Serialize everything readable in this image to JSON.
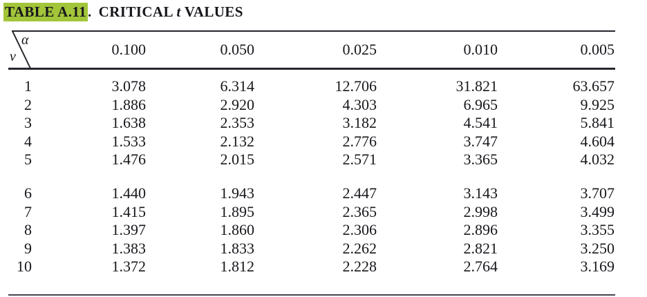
{
  "title": {
    "label": "TABLE A.11",
    "separator": ".",
    "heading_pre": "CRITICAL",
    "heading_t": "t",
    "heading_post": "VALUES",
    "highlight_color": "#a3c53a"
  },
  "table": {
    "corner": {
      "alpha": "α",
      "nu": "ν"
    },
    "columns": [
      "0.100",
      "0.050",
      "0.025",
      "0.010",
      "0.005"
    ],
    "row_groups": [
      [
        {
          "v": "1",
          "t": [
            "3.078",
            "6.314",
            "12.706",
            "31.821",
            "63.657"
          ]
        },
        {
          "v": "2",
          "t": [
            "1.886",
            "2.920",
            "4.303",
            "6.965",
            "9.925"
          ]
        },
        {
          "v": "3",
          "t": [
            "1.638",
            "2.353",
            "3.182",
            "4.541",
            "5.841"
          ]
        },
        {
          "v": "4",
          "t": [
            "1.533",
            "2.132",
            "2.776",
            "3.747",
            "4.604"
          ]
        },
        {
          "v": "5",
          "t": [
            "1.476",
            "2.015",
            "2.571",
            "3.365",
            "4.032"
          ]
        }
      ],
      [
        {
          "v": "6",
          "t": [
            "1.440",
            "1.943",
            "2.447",
            "3.143",
            "3.707"
          ]
        },
        {
          "v": "7",
          "t": [
            "1.415",
            "1.895",
            "2.365",
            "2.998",
            "3.499"
          ]
        },
        {
          "v": "8",
          "t": [
            "1.397",
            "1.860",
            "2.306",
            "2.896",
            "3.355"
          ]
        },
        {
          "v": "9",
          "t": [
            "1.383",
            "1.833",
            "2.262",
            "2.821",
            "3.250"
          ]
        },
        {
          "v": "10",
          "t": [
            "1.372",
            "1.812",
            "2.228",
            "2.764",
            "3.169"
          ]
        }
      ]
    ],
    "line_color": "#26262c"
  }
}
